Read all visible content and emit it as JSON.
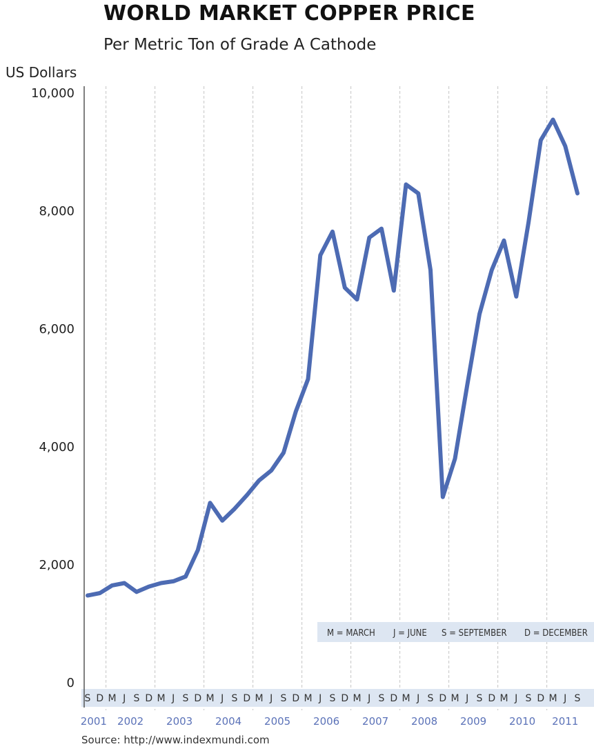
{
  "chart_data": {
    "type": "line",
    "title": "WORLD MARKET COPPER PRICE",
    "subtitle": "Per Metric Ton of Grade A Cathode",
    "ylabel": "US Dollars",
    "ylim": [
      0,
      10000
    ],
    "yticks": [
      0,
      2000,
      4000,
      6000,
      8000,
      10000
    ],
    "ytick_labels": [
      "0",
      "2,000",
      "4,000",
      "6,000",
      "8,000",
      "10,000"
    ],
    "grid": "vertical dashed lines between years",
    "years": [
      "2001",
      "2002",
      "2003",
      "2004",
      "2005",
      "2006",
      "2007",
      "2008",
      "2009",
      "2010",
      "2011"
    ],
    "quarter_labels": [
      [
        "S",
        "D"
      ],
      [
        "M",
        "J",
        "S",
        "D"
      ],
      [
        "M",
        "J",
        "S",
        "D"
      ],
      [
        "M",
        "J",
        "S",
        "D"
      ],
      [
        "M",
        "J",
        "S",
        "D"
      ],
      [
        "M",
        "J",
        "S",
        "D"
      ],
      [
        "M",
        "J",
        "S",
        "D"
      ],
      [
        "M",
        "J",
        "S",
        "D"
      ],
      [
        "M",
        "J",
        "S",
        "D"
      ],
      [
        "M",
        "J",
        "S",
        "D"
      ],
      [
        "M",
        "J",
        "S"
      ]
    ],
    "legend": [
      "M = MARCH",
      "J = JUNE",
      "S = SEPTEMBER",
      "D = DECEMBER"
    ],
    "series": [
      {
        "color": "#4d6bb3",
        "x": [
          "2001-S",
          "2001-D",
          "2002-M",
          "2002-J",
          "2002-S",
          "2002-D",
          "2003-M",
          "2003-J",
          "2003-S",
          "2003-D",
          "2004-M",
          "2004-J",
          "2004-S",
          "2004-D",
          "2005-M",
          "2005-J",
          "2005-S",
          "2005-D",
          "2006-M",
          "2006-J",
          "2006-S",
          "2006-D",
          "2007-M",
          "2007-J",
          "2007-S",
          "2007-D",
          "2008-M",
          "2008-J",
          "2008-S",
          "2008-D",
          "2009-M",
          "2009-J",
          "2009-S",
          "2009-D",
          "2010-M",
          "2010-J",
          "2010-S",
          "2010-D",
          "2011-M",
          "2011-J",
          "2011-S"
        ],
        "values": [
          1480,
          1520,
          1650,
          1690,
          1540,
          1630,
          1690,
          1720,
          1800,
          2250,
          3050,
          2750,
          2950,
          3180,
          3430,
          3600,
          3900,
          4600,
          5150,
          7250,
          7650,
          6700,
          6500,
          7550,
          7700,
          6650,
          8450,
          8300,
          7000,
          3150,
          3800,
          5050,
          6250,
          7000,
          7500,
          6550,
          7800,
          9200,
          9550,
          9100,
          8300
        ]
      }
    ]
  },
  "source": "Source: http://www.indexmundi.com"
}
